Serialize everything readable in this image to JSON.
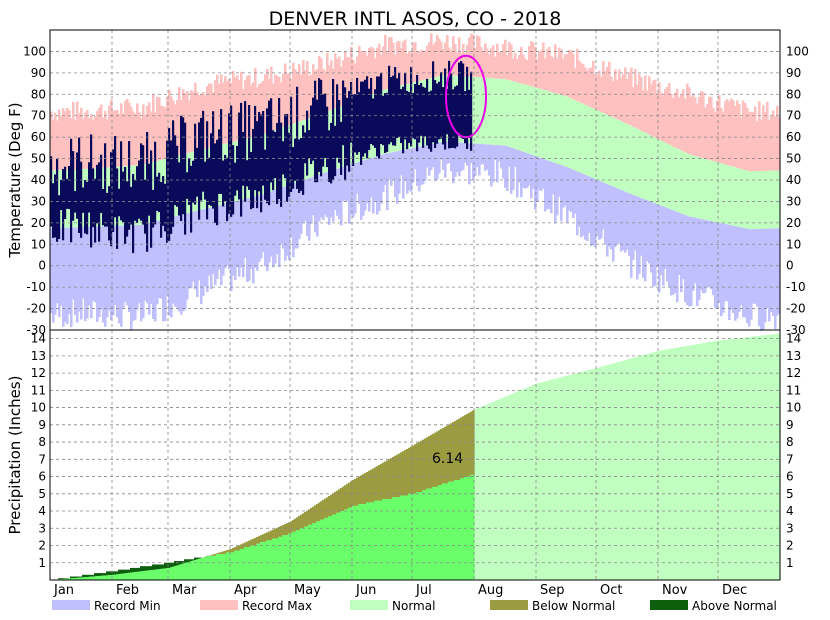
{
  "title": "DENVER INTL  ASOS, CO - 2018",
  "colors": {
    "record_min": "#c0c0ff",
    "record_max": "#ffc0c0",
    "normal": "#c0ffc0",
    "observed": "#0a0a5a",
    "below_normal": "#9b9b40",
    "above_normal": "#0d5e0d",
    "observed_precip": "#6aff6a",
    "highlight": "#ee00ee"
  },
  "chart_data": [
    {
      "type": "bar",
      "ylabel": "Temperature (Deg F)",
      "ylim": [
        -30,
        110
      ],
      "yticks": [
        -30,
        -20,
        -10,
        0,
        10,
        20,
        30,
        40,
        50,
        60,
        70,
        80,
        90,
        100
      ],
      "months": [
        "Jan",
        "Feb",
        "Mar",
        "Apr",
        "May",
        "Jun",
        "Jul",
        "Aug",
        "Sep",
        "Oct",
        "Nov",
        "Dec"
      ],
      "grid": true,
      "normal_high": [
        45,
        47,
        54,
        61,
        71,
        82,
        89,
        87,
        79,
        66,
        52,
        44
      ],
      "normal_low": [
        18,
        19,
        26,
        33,
        43,
        52,
        58,
        56,
        46,
        34,
        23,
        17
      ],
      "record_max": [
        72,
        74,
        84,
        88,
        94,
        103,
        105,
        102,
        98,
        88,
        80,
        72
      ],
      "record_min": [
        -22,
        -24,
        -12,
        0,
        20,
        32,
        45,
        42,
        23,
        2,
        -13,
        -24
      ],
      "observed_2018_high": [
        48,
        47,
        60,
        64,
        74,
        86,
        89
      ],
      "observed_2018_low": [
        18,
        14,
        26,
        32,
        45,
        55,
        58
      ],
      "observed_through_month": 7
    },
    {
      "type": "area",
      "ylabel": "Precipitation (Inches)",
      "ylim": [
        0,
        14.5
      ],
      "yticks": [
        1,
        2,
        3,
        4,
        5,
        6,
        7,
        8,
        9,
        10,
        11,
        12,
        13,
        14
      ],
      "months": [
        "Jan",
        "Feb",
        "Mar",
        "Apr",
        "May",
        "Jun",
        "Jul",
        "Aug",
        "Sep",
        "Oct",
        "Nov",
        "Dec"
      ],
      "grid": true,
      "normal_cumulative_month_end": [
        0.3,
        0.7,
        1.8,
        3.4,
        5.8,
        7.8,
        9.9,
        11.4,
        12.3,
        13.3,
        13.9,
        14.3
      ],
      "observed_cumulative_month_end": [
        0.5,
        1.0,
        1.6,
        2.7,
        4.3,
        5.0,
        6.14
      ],
      "annotation": "6.14"
    }
  ],
  "legend": {
    "placement": "bottom",
    "items": [
      {
        "label": "Record Min",
        "color": "#c0c0ff"
      },
      {
        "label": "Record Max",
        "color": "#ffc0c0"
      },
      {
        "label": "Normal",
        "color": "#c0ffc0"
      },
      {
        "label": "Below Normal",
        "color": "#9b9b40"
      },
      {
        "label": "Above Normal",
        "color": "#0d5e0d"
      }
    ]
  }
}
